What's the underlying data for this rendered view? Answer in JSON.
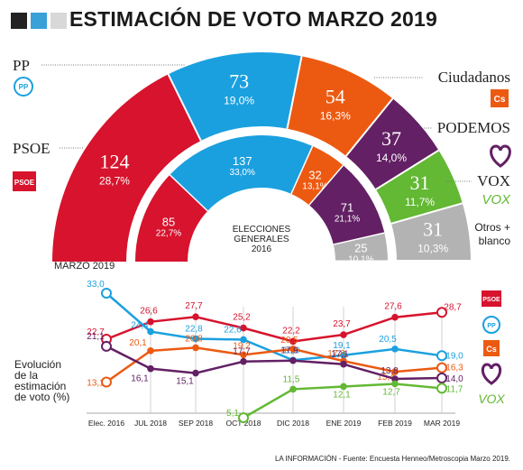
{
  "header": {
    "title": "ESTIMACIÓN DE VOTO MARZO 2019",
    "squares": [
      "#222222",
      "#3aa0d8",
      "#d8d8d8"
    ]
  },
  "chart_data": [
    {
      "type": "pie",
      "subtype": "half-donut parliament",
      "label": "MARZO 2019",
      "segments": [
        {
          "party": "PSOE",
          "seats": 124,
          "pct": "28,7%",
          "color": "#d7132d"
        },
        {
          "party": "PP",
          "seats": 73,
          "pct": "19,0%",
          "color": "#1ba0df"
        },
        {
          "party": "Ciudadanos",
          "seats": 54,
          "pct": "16,3%",
          "color": "#ec5a12"
        },
        {
          "party": "PODEMOS",
          "seats": 37,
          "pct": "14,0%",
          "color": "#632064"
        },
        {
          "party": "VOX",
          "seats": 31,
          "pct": "11,7%",
          "color": "#63b834"
        },
        {
          "party": "Otros + blanco",
          "seats": 31,
          "pct": "10,3%",
          "color": "#b3b3b3"
        }
      ],
      "inner": {
        "label_lines": [
          "ELECCIONES",
          "GENERALES",
          "2016"
        ],
        "segments": [
          {
            "party": "PSOE",
            "seats": 85,
            "pct": "22,7%",
            "color": "#d7132d"
          },
          {
            "party": "PP",
            "seats": 137,
            "pct": "33,0%",
            "color": "#1ba0df"
          },
          {
            "party": "Ciudadanos",
            "seats": 32,
            "pct": "13,1%",
            "color": "#ec5a12"
          },
          {
            "party": "PODEMOS",
            "seats": 71,
            "pct": "21,1%",
            "color": "#632064"
          },
          {
            "party": "Otros + blanco",
            "seats": 25,
            "pct": "10,1%",
            "color": "#b3b3b3"
          }
        ]
      }
    },
    {
      "type": "line",
      "title_lines": [
        "Evolución",
        "de la",
        "estimación",
        "de voto (%)"
      ],
      "categories": [
        "Elec. 2016",
        "JUL 2018",
        "SEP 2018",
        "OCT 2018",
        "DIC 2018",
        "ENE 2019",
        "FEB 2019",
        "MAR 2019"
      ],
      "series": [
        {
          "name": "PSOE",
          "color": "#d7132d",
          "values": [
            22.7,
            26.6,
            27.7,
            25.2,
            22.2,
            23.7,
            27.6,
            28.7
          ],
          "labels": [
            "22,7",
            "26,6",
            "27,7",
            "25,2",
            "22,2",
            "23,7",
            "27,6",
            "28,7"
          ]
        },
        {
          "name": "PP",
          "color": "#1ba0df",
          "values": [
            33.0,
            24.4,
            22.8,
            22.6,
            18.0,
            19.1,
            20.5,
            19.0
          ],
          "labels": [
            "33,0",
            "24,4",
            "22,8",
            "22,6",
            "18,0",
            "19,1",
            "20,5",
            "19,0"
          ]
        },
        {
          "name": "Ciudadanos",
          "color": "#ec5a12",
          "values": [
            13.1,
            20.1,
            20.8,
            19.2,
            20.5,
            17.8,
            15.4,
            16.3
          ],
          "labels": [
            "13,1",
            "20,1",
            "20,8",
            "19,2",
            "20,5",
            "17,8",
            "15,4",
            "16,3"
          ]
        },
        {
          "name": "PODEMOS",
          "color": "#632064",
          "values": [
            21.1,
            16.1,
            15.1,
            17.7,
            17.9,
            17.1,
            13.8,
            14.0
          ],
          "labels": [
            "21,1",
            "16,1",
            "15,1",
            "17,7",
            "17,9",
            "17,1",
            "13,8",
            "14,0"
          ]
        },
        {
          "name": "VOX",
          "color": "#63b834",
          "values": [
            null,
            null,
            null,
            5.1,
            11.5,
            12.1,
            12.7,
            11.7
          ],
          "labels": [
            null,
            null,
            null,
            "5,1",
            "11,5",
            "12,1",
            "12,7",
            "11,7"
          ]
        }
      ]
    }
  ],
  "legend": {
    "PP": "PP",
    "PSOE": "PSOE",
    "Ciudadanos": "Ciudadanos",
    "PODEMOS": "PODEMOS",
    "VOX": "VOX",
    "Otros": [
      "Otros +",
      "blanco"
    ],
    "badge_psoe": "PSOE",
    "badge_pp": "PP",
    "badge_cs": "Cs",
    "badge_vox": "VOX"
  },
  "footer": "LA INFORMACIÓN - Fuente: Encuesta Henneo/Metroscopia Marzo 2019."
}
